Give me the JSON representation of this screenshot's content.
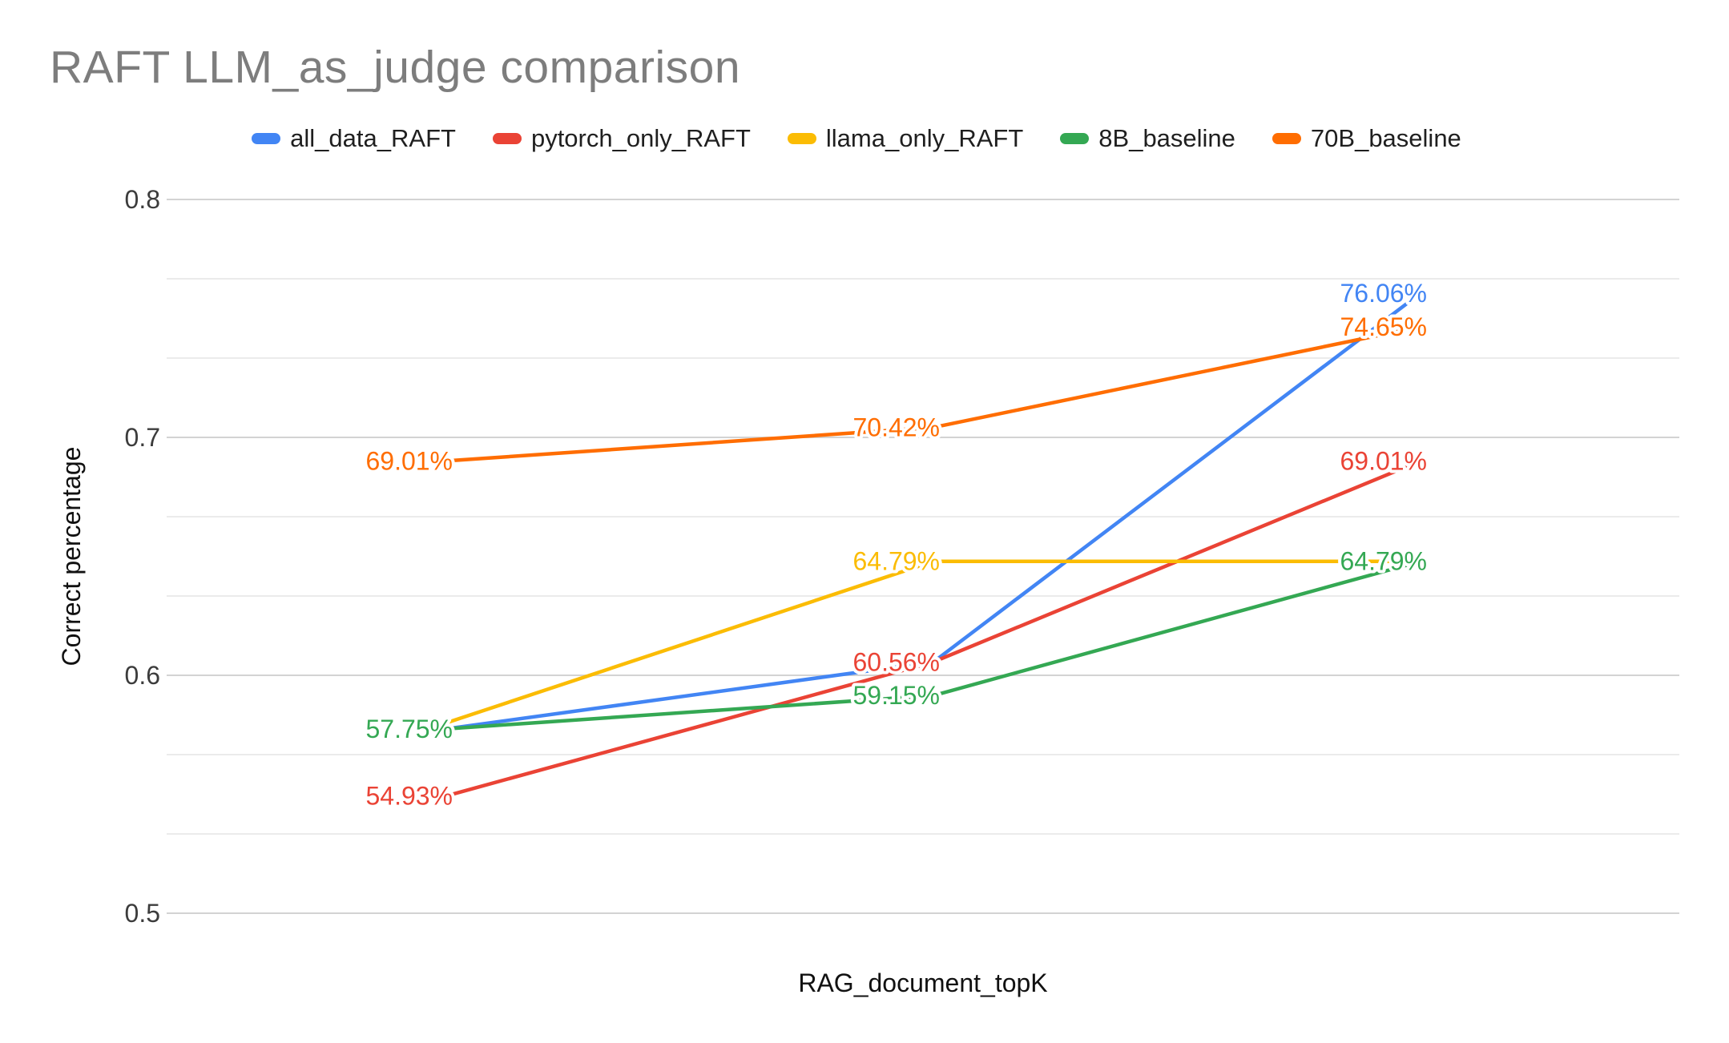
{
  "title": {
    "text": "RAFT LLM_as_judge comparison",
    "color": "#7d7d7d"
  },
  "legend": {
    "items": [
      {
        "label": "all_data_RAFT",
        "color": "#4285F4"
      },
      {
        "label": "pytorch_only_RAFT",
        "color": "#EA4335"
      },
      {
        "label": "llama_only_RAFT",
        "color": "#FBBC04"
      },
      {
        "label": "8B_baseline",
        "color": "#34A853"
      },
      {
        "label": "70B_baseline",
        "color": "#FF6D01"
      }
    ]
  },
  "y_axis": {
    "title": "Correct percentage",
    "ticks": [
      "0.8",
      "0.7",
      "0.6",
      "0.5"
    ]
  },
  "x_axis": {
    "title": "RAG_document_topK",
    "tick_labels": []
  },
  "chart_data": {
    "type": "line",
    "title": "RAFT LLM_as_judge comparison",
    "xlabel": "RAG_document_topK",
    "ylabel": "Correct percentage",
    "ylim": [
      0.5,
      0.8
    ],
    "y_major_ticks": [
      0.8,
      0.7,
      0.6,
      0.5
    ],
    "minor_gridlines_per_interval": 2,
    "grid": "horizontal-only",
    "legend_position": "top-center",
    "x_points": 3,
    "x_tick_labels_visible": false,
    "series": [
      {
        "name": "all_data_RAFT",
        "color": "#4285F4",
        "values": [
          0.5775,
          0.6056,
          0.7606
        ],
        "labels": [
          null,
          null,
          "76.06%"
        ]
      },
      {
        "name": "pytorch_only_RAFT",
        "color": "#EA4335",
        "values": [
          0.5493,
          0.6056,
          0.6901
        ],
        "labels": [
          "54.93%",
          "60.56%",
          "69.01%"
        ]
      },
      {
        "name": "llama_only_RAFT",
        "color": "#FBBC04",
        "values": [
          0.58,
          0.6479,
          0.6479
        ],
        "labels": [
          null,
          "64.79%",
          null
        ]
      },
      {
        "name": "8B_baseline",
        "color": "#34A853",
        "values": [
          0.5775,
          0.5915,
          0.6479
        ],
        "labels": [
          "57.75%",
          "59.15%",
          "64.79%"
        ]
      },
      {
        "name": "70B_baseline",
        "color": "#FF6D01",
        "values": [
          0.6901,
          0.7042,
          0.7465
        ],
        "labels": [
          "69.01%",
          "70.42%",
          "74.65%"
        ]
      }
    ],
    "gridline_color_major": "#d3d3d3",
    "gridline_color_minor": "#ebebeb",
    "line_width": 4.5
  }
}
